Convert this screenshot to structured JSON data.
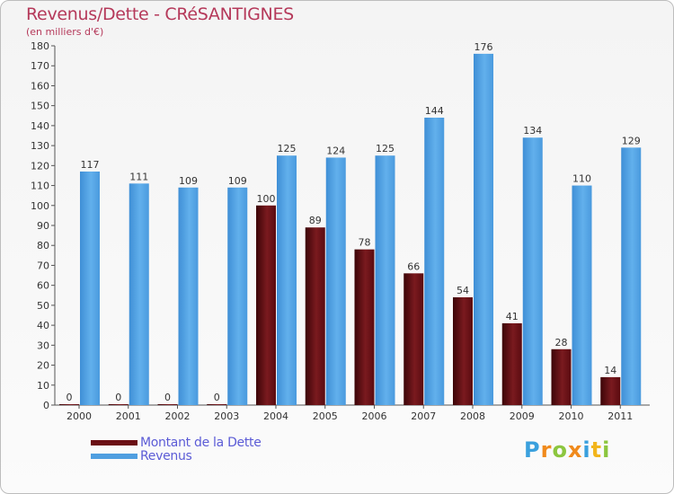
{
  "header": {
    "title": "Revenus/Dette - CRéSANTIGNES",
    "subtitle": "(en milliers d'€)"
  },
  "chart_data": {
    "type": "bar",
    "categories": [
      "2000",
      "2001",
      "2002",
      "2003",
      "2004",
      "2005",
      "2006",
      "2007",
      "2008",
      "2009",
      "2010",
      "2011"
    ],
    "series": [
      {
        "name": "Montant de la Dette",
        "color": "#6b0f14",
        "values": [
          0,
          0,
          0,
          0,
          100,
          89,
          78,
          66,
          54,
          41,
          28,
          14
        ]
      },
      {
        "name": "Revenus",
        "color": "#4f9fe0",
        "values": [
          117,
          111,
          109,
          109,
          125,
          124,
          125,
          144,
          176,
          134,
          110,
          129
        ]
      }
    ],
    "ylim": [
      0,
      180
    ],
    "ytick_step": 10,
    "title": "Revenus/Dette - CRéSANTIGNES",
    "ylabel": "(en milliers d'€)",
    "grid": false,
    "legend_position": "bottom-left"
  },
  "legend": {
    "items": [
      {
        "label": "Montant de la Dette",
        "color": "#6b0f14"
      },
      {
        "label": "Revenus",
        "color": "#4f9fe0"
      }
    ]
  },
  "logo": {
    "letters": [
      "P",
      "r",
      "o",
      "x",
      "i",
      "t",
      "i"
    ],
    "colors": [
      "#3aa0dd",
      "#f08a1c",
      "#8cc63f",
      "#f08a1c",
      "#3aa0dd",
      "#f2b51c",
      "#8cc63f"
    ]
  }
}
